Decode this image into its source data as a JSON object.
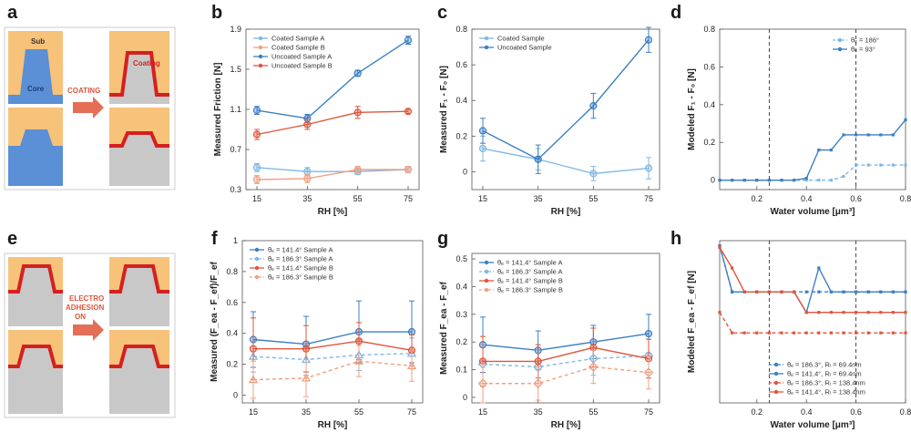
{
  "figure": {
    "panel_labels": [
      "a",
      "b",
      "c",
      "d",
      "e",
      "f",
      "g",
      "h"
    ],
    "schematics": {
      "a": {
        "top_label": "Sub",
        "bottom_label": "Core",
        "arrow_text": "COATING",
        "right_label": "Coating"
      },
      "e": {
        "arrow_lines": [
          "ELECTRO",
          "ADHESION",
          "ON"
        ]
      }
    }
  },
  "colors": {
    "blue": "#3c7fc4",
    "lightblue": "#7fb8e6",
    "red": "#e0553a",
    "lightred": "#f0a080",
    "gray": "#c8c8c8",
    "orange": "#f7c27a",
    "base": "#5b8fd6"
  },
  "chart_data": [
    {
      "id": "b",
      "type": "line",
      "title": "",
      "xlabel": "RH [%]",
      "ylabel": "Measured Friction [N]",
      "x": [
        15,
        35,
        55,
        75
      ],
      "xticks": [
        "15",
        "35",
        "55",
        "75"
      ],
      "ylim": [
        0.3,
        1.9
      ],
      "yticks": [
        0.3,
        0.7,
        1.1,
        1.5,
        1.9
      ],
      "ytick_labels": [
        "0.3",
        "0.7",
        "1.1",
        "1.5",
        "1.9"
      ],
      "legend": "top-left",
      "series": [
        {
          "name": "Coated Sample A",
          "color": "#7fb8e6",
          "values": [
            0.52,
            0.48,
            0.48,
            0.5
          ],
          "err": [
            0.04,
            0.04,
            0.03,
            0.03
          ]
        },
        {
          "name": "Coated Sample B",
          "color": "#f0a080",
          "values": [
            0.4,
            0.41,
            0.5,
            0.5
          ],
          "err": [
            0.04,
            0.04,
            0.03,
            0.03
          ]
        },
        {
          "name": "Uncoated Sample A",
          "color": "#3c7fc4",
          "values": [
            1.09,
            1.01,
            1.46,
            1.79
          ],
          "err": [
            0.04,
            0.04,
            0.03,
            0.04
          ]
        },
        {
          "name": "Uncoated Sample B",
          "color": "#e0553a",
          "values": [
            0.85,
            0.95,
            1.07,
            1.08
          ],
          "err": [
            0.05,
            0.05,
            0.06,
            0.02
          ]
        }
      ]
    },
    {
      "id": "c",
      "type": "line",
      "xlabel": "RH [%]",
      "ylabel": "Measured F₁ - F₀ [N]",
      "x": [
        15,
        35,
        55,
        75
      ],
      "xticks": [
        "15",
        "35",
        "55",
        "75"
      ],
      "ylim": [
        -0.1,
        0.8
      ],
      "yticks": [
        0,
        0.2,
        0.4,
        0.6,
        0.8
      ],
      "ytick_labels": [
        "0",
        "0.2",
        "0.4",
        "0.6",
        "0.8"
      ],
      "legend": "top-left",
      "series": [
        {
          "name": "Coated Sample",
          "color": "#7fb8e6",
          "values": [
            0.13,
            0.07,
            -0.01,
            0.02
          ],
          "err": [
            0.07,
            0.06,
            0.04,
            0.06
          ]
        },
        {
          "name": "Uncoated Sample",
          "color": "#3c7fc4",
          "values": [
            0.23,
            0.07,
            0.37,
            0.74
          ],
          "err": [
            0.07,
            0.08,
            0.07,
            0.07
          ]
        }
      ]
    },
    {
      "id": "d",
      "type": "line",
      "xlabel": "Water volume [μm³]",
      "ylabel": "Modeled F₁ - F₀ [N]",
      "xlim": [
        0.05,
        0.8
      ],
      "xticks": [
        0.2,
        0.4,
        0.6,
        0.8
      ],
      "xtick_labels": [
        "0.2",
        "0.4",
        "0.6",
        "0.8"
      ],
      "ylim": [
        -0.05,
        0.8
      ],
      "yticks": [
        0,
        0.2,
        0.4,
        0.6,
        0.8
      ],
      "ytick_labels": [
        "0",
        "0.2",
        "0.4",
        "0.6",
        "0.8"
      ],
      "vlines": [
        0.25,
        0.6
      ],
      "legend": "top-right",
      "series": [
        {
          "name": "θₑ = 186°",
          "color": "#7fb8e6",
          "dashed": true,
          "x": [
            0.05,
            0.1,
            0.15,
            0.2,
            0.25,
            0.3,
            0.35,
            0.4,
            0.45,
            0.5,
            0.55,
            0.6,
            0.65,
            0.7,
            0.75,
            0.8
          ],
          "values": [
            0,
            0,
            0,
            0,
            0,
            0,
            0,
            0,
            0,
            0,
            0.02,
            0.08,
            0.08,
            0.08,
            0.08,
            0.08
          ]
        },
        {
          "name": "θₑ = 93°",
          "color": "#3c7fc4",
          "dashed": false,
          "x": [
            0.05,
            0.1,
            0.15,
            0.2,
            0.25,
            0.3,
            0.35,
            0.4,
            0.45,
            0.5,
            0.55,
            0.6,
            0.65,
            0.7,
            0.75,
            0.8
          ],
          "values": [
            0,
            0,
            0,
            0,
            0,
            0,
            0,
            0.01,
            0.16,
            0.16,
            0.24,
            0.24,
            0.24,
            0.24,
            0.24,
            0.32
          ]
        }
      ]
    },
    {
      "id": "f",
      "type": "line",
      "xlabel": "RH [%]",
      "ylabel": "Measured (F_ea - F_ef)/F_ef",
      "x": [
        15,
        35,
        55,
        75
      ],
      "xticks": [
        "15",
        "35",
        "55",
        "75"
      ],
      "ylim": [
        -0.05,
        1.0
      ],
      "yticks": [
        0,
        0.2,
        0.4,
        0.6,
        0.8,
        1.0
      ],
      "ytick_labels": [
        "0",
        "0.2",
        "0.4",
        "0.6",
        "0.8",
        "1"
      ],
      "legend": "top-left",
      "series": [
        {
          "name": "θₑ = 141.4° Sample A",
          "color": "#3c7fc4",
          "dashed": false,
          "marker": "circle",
          "values": [
            0.36,
            0.33,
            0.41,
            0.41
          ],
          "err": [
            0.18,
            0.18,
            0.2,
            0.2
          ]
        },
        {
          "name": "θₑ = 186.3° Sample A",
          "color": "#7fb8e6",
          "dashed": true,
          "marker": "triangle",
          "values": [
            0.25,
            0.23,
            0.26,
            0.27
          ],
          "err": [
            0.1,
            0.1,
            0.1,
            0.1
          ]
        },
        {
          "name": "θₑ = 141.4° Sample B",
          "color": "#e0553a",
          "dashed": false,
          "marker": "circle",
          "values": [
            0.3,
            0.3,
            0.35,
            0.29
          ],
          "err": [
            0.2,
            0.15,
            0.12,
            0.1
          ]
        },
        {
          "name": "θₑ = 186.3° Sample B",
          "color": "#f0a080",
          "dashed": true,
          "marker": "triangle",
          "values": [
            0.1,
            0.11,
            0.22,
            0.19
          ],
          "err": [
            0.12,
            0.12,
            0.1,
            0.1
          ]
        }
      ]
    },
    {
      "id": "g",
      "type": "line",
      "xlabel": "RH [%]",
      "ylabel": "Measured F_ea - F_ef",
      "x": [
        15,
        35,
        55,
        75
      ],
      "xticks": [
        "15",
        "35",
        "55",
        "75"
      ],
      "ylim": [
        -0.02,
        0.52
      ],
      "yticks": [
        0,
        0.1,
        0.2,
        0.3,
        0.4,
        0.5
      ],
      "ytick_labels": [
        "0",
        "0.1",
        "0.2",
        "0.3",
        "0.4",
        "0.5"
      ],
      "legend": "top-left",
      "series": [
        {
          "name": "θₑ = 141.4° Sample A",
          "color": "#3c7fc4",
          "dashed": false,
          "marker": "circle",
          "values": [
            0.19,
            0.17,
            0.2,
            0.23
          ],
          "err": [
            0.1,
            0.07,
            0.06,
            0.07
          ]
        },
        {
          "name": "θₑ = 186.3° Sample A",
          "color": "#7fb8e6",
          "dashed": true,
          "marker": "diamond",
          "values": [
            0.12,
            0.11,
            0.14,
            0.15
          ],
          "err": [
            0.07,
            0.06,
            0.06,
            0.06
          ]
        },
        {
          "name": "θₑ = 141.4° Sample B",
          "color": "#e0553a",
          "dashed": false,
          "marker": "circle",
          "values": [
            0.13,
            0.13,
            0.18,
            0.14
          ],
          "err": [
            0.09,
            0.06,
            0.07,
            0.07
          ]
        },
        {
          "name": "θₑ = 186.3° Sample B",
          "color": "#f0a080",
          "dashed": true,
          "marker": "diamond",
          "values": [
            0.05,
            0.05,
            0.11,
            0.09
          ],
          "err": [
            0.07,
            0.06,
            0.06,
            0.06
          ]
        }
      ]
    },
    {
      "id": "h",
      "type": "line",
      "xlabel": "Water volume [μm³]",
      "ylabel": "Modeled F_ea - F_ef [N]",
      "xlim": [
        0.05,
        0.8
      ],
      "xticks": [
        0.2,
        0.4,
        0.6,
        0.8
      ],
      "xtick_labels": [
        "0.2",
        "0.4",
        "0.6",
        "0.8"
      ],
      "ylim": [
        -0.05,
        0.9
      ],
      "yticks": [],
      "ytick_labels": [],
      "vlines": [
        0.25,
        0.6
      ],
      "legend": "bottom-right",
      "series": [
        {
          "name": "θₑ = 186.3°, Rₗ = 69.4nm",
          "color": "#3c7fc4",
          "dashed": true,
          "x": [
            0.05,
            0.1,
            0.15,
            0.2,
            0.25,
            0.3,
            0.35,
            0.4,
            0.45,
            0.5,
            0.55,
            0.6,
            0.65,
            0.7,
            0.75,
            0.8
          ],
          "values": [
            0.87,
            0.6,
            0.6,
            0.6,
            0.6,
            0.6,
            0.6,
            0.6,
            0.6,
            0.6,
            0.6,
            0.6,
            0.6,
            0.6,
            0.6,
            0.6
          ]
        },
        {
          "name": "θₑ = 141.4°, Rₗ = 69.4nm",
          "color": "#3c7fc4",
          "dashed": false,
          "x": [
            0.05,
            0.1,
            0.15,
            0.2,
            0.25,
            0.3,
            0.35,
            0.4,
            0.45,
            0.5,
            0.55,
            0.6,
            0.65,
            0.7,
            0.75,
            0.8
          ],
          "values": [
            0.87,
            0.6,
            0.6,
            0.6,
            0.6,
            0.6,
            0.6,
            0.48,
            0.74,
            0.6,
            0.6,
            0.6,
            0.6,
            0.6,
            0.6,
            0.6
          ]
        },
        {
          "name": "θₑ = 186.3°, Rₗ = 138.4nm",
          "color": "#e0553a",
          "dashed": true,
          "x": [
            0.05,
            0.1,
            0.15,
            0.2,
            0.25,
            0.3,
            0.35,
            0.4,
            0.45,
            0.5,
            0.55,
            0.6,
            0.65,
            0.7,
            0.75,
            0.8
          ],
          "values": [
            0.48,
            0.36,
            0.36,
            0.36,
            0.36,
            0.36,
            0.36,
            0.36,
            0.36,
            0.36,
            0.36,
            0.36,
            0.36,
            0.36,
            0.36,
            0.36
          ]
        },
        {
          "name": "θₑ = 141.4°, Rₗ = 138.4nm",
          "color": "#e0553a",
          "dashed": false,
          "x": [
            0.05,
            0.1,
            0.15,
            0.2,
            0.25,
            0.3,
            0.35,
            0.4,
            0.45,
            0.5,
            0.55,
            0.6,
            0.65,
            0.7,
            0.75,
            0.8
          ],
          "values": [
            0.86,
            0.74,
            0.6,
            0.6,
            0.6,
            0.6,
            0.6,
            0.48,
            0.48,
            0.48,
            0.48,
            0.48,
            0.48,
            0.48,
            0.48,
            0.48
          ]
        }
      ]
    }
  ]
}
